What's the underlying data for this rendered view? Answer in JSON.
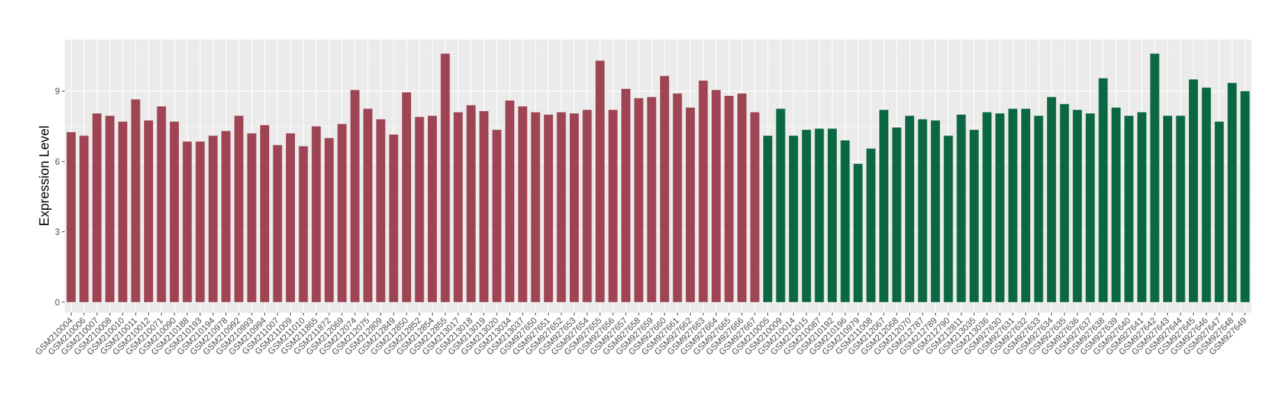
{
  "chart_data": {
    "type": "bar",
    "title": "",
    "xlabel": "",
    "ylabel": "Expression Level",
    "ylim": [
      -0.45,
      11.2
    ],
    "yticks": [
      0,
      3,
      6,
      9
    ],
    "grid": true,
    "legend": "none",
    "colors": {
      "group1": "#9e4452",
      "group2": "#0a6741",
      "panel": "#ebebeb",
      "gridline": "#ffffff",
      "tick": "#333333"
    },
    "categories": [
      "GSM210004",
      "GSM210006",
      "GSM210007",
      "GSM210008",
      "GSM210010",
      "GSM210011",
      "GSM210012",
      "GSM210071",
      "GSM210090",
      "GSM210188",
      "GSM210193",
      "GSM210194",
      "GSM210978",
      "GSM210992",
      "GSM210993",
      "GSM210994",
      "GSM211007",
      "GSM211009",
      "GSM211010",
      "GSM211865",
      "GSM211872",
      "GSM212069",
      "GSM212074",
      "GSM212075",
      "GSM212809",
      "GSM212849",
      "GSM212850",
      "GSM212852",
      "GSM212854",
      "GSM212855",
      "GSM213017",
      "GSM213018",
      "GSM213019",
      "GSM213020",
      "GSM213034",
      "GSM213037",
      "GSM927650",
      "GSM927651",
      "GSM927652",
      "GSM927653",
      "GSM927654",
      "GSM927655",
      "GSM927656",
      "GSM927657",
      "GSM927658",
      "GSM927659",
      "GSM927660",
      "GSM927661",
      "GSM927662",
      "GSM927663",
      "GSM927664",
      "GSM927665",
      "GSM927666",
      "GSM927667",
      "GSM210005",
      "GSM210009",
      "GSM210014",
      "GSM210015",
      "GSM210087",
      "GSM210192",
      "GSM210196",
      "GSM210979",
      "GSM211008",
      "GSM212067",
      "GSM212068",
      "GSM212070",
      "GSM212787",
      "GSM212789",
      "GSM212790",
      "GSM212811",
      "GSM213035",
      "GSM213036",
      "GSM927630",
      "GSM927631",
      "GSM927632",
      "GSM927633",
      "GSM927634",
      "GSM927635",
      "GSM927636",
      "GSM927637",
      "GSM927638",
      "GSM927639",
      "GSM927640",
      "GSM927641",
      "GSM927642",
      "GSM927643",
      "GSM927644",
      "GSM927645",
      "GSM927646",
      "GSM927647",
      "GSM927648",
      "GSM927649"
    ],
    "values": [
      7.25,
      7.1,
      8.05,
      7.95,
      7.7,
      8.65,
      7.75,
      8.35,
      7.7,
      6.85,
      6.85,
      7.1,
      7.3,
      7.95,
      7.2,
      7.55,
      6.7,
      7.2,
      6.65,
      7.5,
      7.0,
      7.6,
      9.05,
      8.25,
      7.8,
      7.15,
      8.95,
      7.9,
      7.95,
      10.6,
      8.1,
      8.4,
      8.15,
      7.35,
      8.6,
      8.35,
      8.1,
      8.0,
      8.1,
      8.05,
      8.2,
      10.3,
      8.2,
      9.1,
      8.7,
      8.75,
      9.65,
      8.9,
      8.3,
      9.45,
      9.05,
      8.8,
      8.9,
      8.1,
      7.1,
      8.25,
      7.1,
      7.35,
      7.4,
      7.4,
      6.9,
      5.9,
      6.55,
      8.2,
      7.45,
      7.95,
      7.8,
      7.75,
      7.1,
      8.0,
      7.35,
      8.1,
      8.05,
      8.25,
      8.25,
      7.95,
      8.75,
      8.45,
      8.2,
      8.05,
      9.55,
      8.3,
      7.95,
      8.1,
      10.6,
      7.95,
      7.95,
      9.5,
      9.15,
      7.7,
      9.35,
      9.0
    ],
    "groups": [
      1,
      1,
      1,
      1,
      1,
      1,
      1,
      1,
      1,
      1,
      1,
      1,
      1,
      1,
      1,
      1,
      1,
      1,
      1,
      1,
      1,
      1,
      1,
      1,
      1,
      1,
      1,
      1,
      1,
      1,
      1,
      1,
      1,
      1,
      1,
      1,
      1,
      1,
      1,
      1,
      1,
      1,
      1,
      1,
      1,
      1,
      1,
      1,
      1,
      1,
      1,
      1,
      1,
      1,
      2,
      2,
      2,
      2,
      2,
      2,
      2,
      2,
      2,
      2,
      2,
      2,
      2,
      2,
      2,
      2,
      2,
      2,
      2,
      2,
      2,
      2,
      2,
      2,
      2,
      2,
      2,
      2,
      2,
      2,
      2,
      2,
      2,
      2,
      2,
      2,
      2,
      2
    ]
  }
}
